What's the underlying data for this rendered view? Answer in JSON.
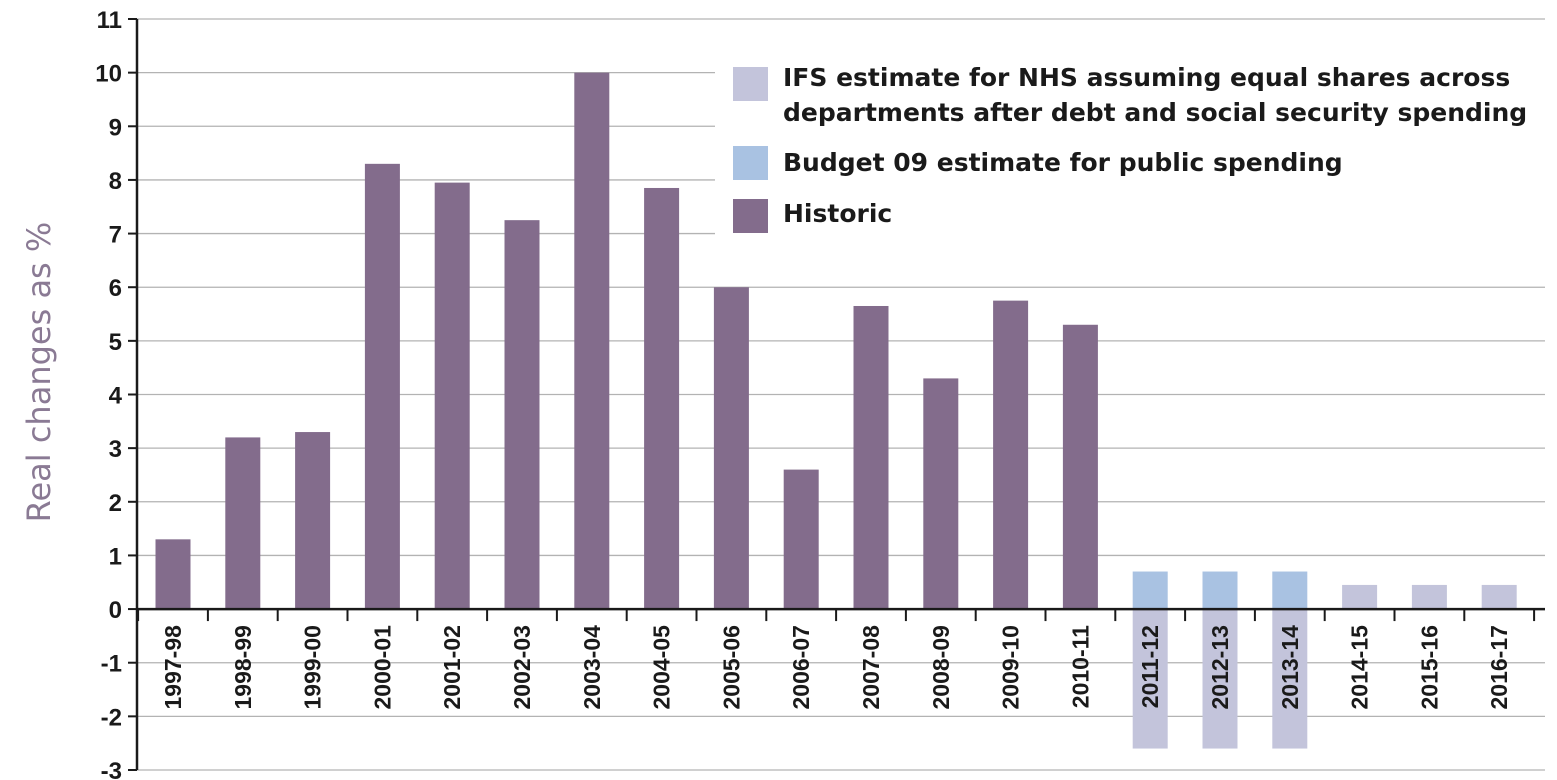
{
  "chart_data": {
    "type": "bar",
    "ylabel": "Real changes as %",
    "xlabel": "",
    "ylim": [
      -3,
      11
    ],
    "yticks": [
      11,
      10,
      9,
      8,
      7,
      6,
      5,
      4,
      3,
      2,
      1,
      0,
      -1,
      -2,
      -3
    ],
    "grid": true,
    "legend_position": "top-right",
    "categories": [
      "1997-98",
      "1998-99",
      "1999-00",
      "2000-01",
      "2001-02",
      "2002-03",
      "2003-04",
      "2004-05",
      "2005-06",
      "2006-07",
      "2007-08",
      "2008-09",
      "2009-10",
      "2010-11",
      "2011-12",
      "2012-13",
      "2013-14",
      "2014-15",
      "2015-16",
      "2016-17"
    ],
    "series": [
      {
        "name": "Historic",
        "color": "#836c8c",
        "values": [
          1.3,
          3.2,
          3.3,
          8.3,
          7.95,
          7.25,
          10.0,
          7.85,
          6.0,
          2.6,
          5.65,
          4.3,
          5.75,
          5.3,
          null,
          null,
          null,
          null,
          null,
          null
        ]
      },
      {
        "name": "Budget 09 estimate for public spending",
        "color": "#a9c2e2",
        "values": [
          null,
          null,
          null,
          null,
          null,
          null,
          null,
          null,
          null,
          null,
          null,
          null,
          null,
          null,
          0.7,
          0.7,
          0.7,
          null,
          null,
          null
        ]
      },
      {
        "name": "IFS estimate for NHS assuming equal shares across departments after debt and social security spending",
        "color": "#c3c4db",
        "values": [
          null,
          null,
          null,
          null,
          null,
          null,
          null,
          null,
          null,
          null,
          null,
          null,
          null,
          null,
          -2.6,
          -2.6,
          -2.6,
          0.45,
          0.45,
          0.45
        ]
      }
    ],
    "legend": [
      {
        "lines": [
          "IFS estimate for NHS assuming equal shares across",
          "departments after debt and social security spending"
        ],
        "color": "#c3c4db"
      },
      {
        "lines": [
          "Budget 09 estimate for public spending"
        ],
        "color": "#a9c2e2"
      },
      {
        "lines": [
          "Historic"
        ],
        "color": "#836c8c"
      }
    ]
  }
}
